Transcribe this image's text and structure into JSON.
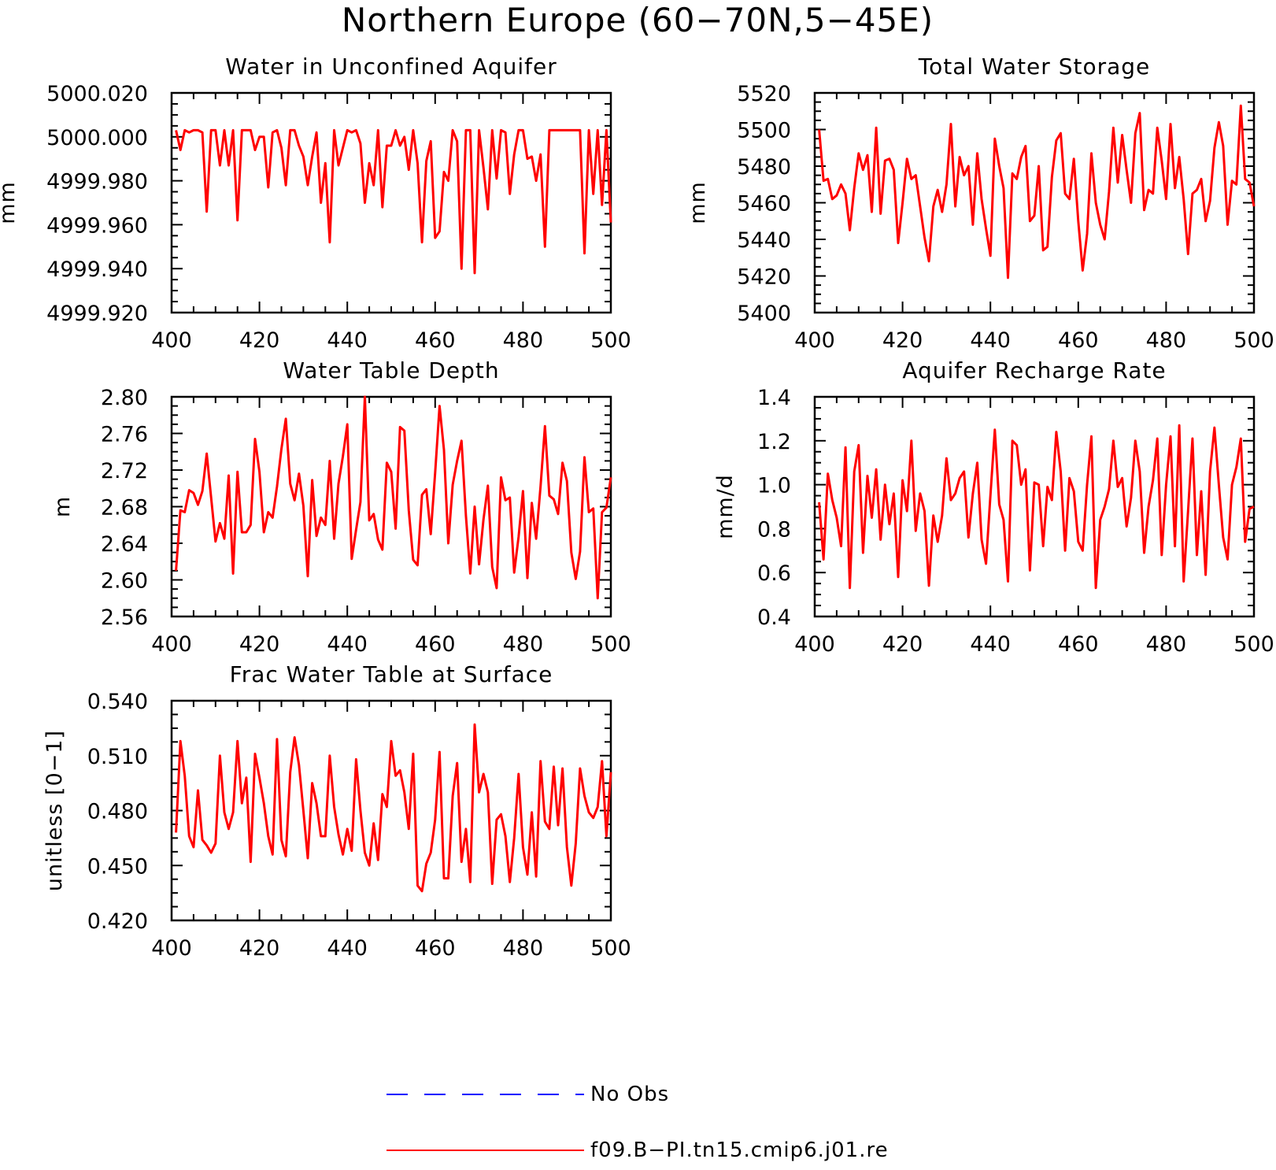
{
  "figure_title": "Northern Europe (60−70N,5−45E)",
  "colors": {
    "model": "#ff0000",
    "obs": "#0000ff",
    "axes": "#000000"
  },
  "legend": {
    "entries": [
      {
        "label": "No Obs",
        "color": "#0000ff",
        "style": "dashed"
      },
      {
        "label": "f09.B−PI.tn15.cmip6.j01.re",
        "color": "#ff0000",
        "style": "solid"
      }
    ]
  },
  "chart_data": [
    {
      "type": "line",
      "title": "Water in Unconfined Aquifer",
      "ylabel": "mm",
      "xlim": [
        400,
        500
      ],
      "xticks": [
        400,
        420,
        440,
        460,
        480,
        500
      ],
      "ylim": [
        4999.92,
        5000.02
      ],
      "yticks": [
        "4999.920",
        "4999.940",
        "4999.960",
        "4999.980",
        "5000.000",
        "5000.020"
      ],
      "x_start": 401,
      "series": [
        {
          "values": [
            5000.003,
            4999.994,
            5000.003,
            5000.002,
            5000.003,
            5000.003,
            5000.002,
            4999.966,
            5000.003,
            5000.003,
            4999.987,
            5000.003,
            4999.987,
            5000.003,
            4999.962,
            5000.003,
            5000.003,
            5000.003,
            4999.994,
            5000.0,
            5000.0,
            4999.977,
            5000.002,
            5000.003,
            4999.995,
            4999.978,
            5000.003,
            5000.003,
            4999.996,
            4999.991,
            4999.978,
            4999.991,
            5000.002,
            4999.97,
            4999.988,
            4999.952,
            5000.003,
            4999.987,
            4999.995,
            5000.003,
            5000.002,
            5000.003,
            4999.997,
            4999.97,
            4999.988,
            4999.978,
            5000.003,
            4999.968,
            4999.996,
            4999.996,
            5000.003,
            4999.996,
            5000.0,
            4999.985,
            5000.003,
            4999.988,
            4999.952,
            4999.989,
            4999.998,
            4999.954,
            4999.957,
            4999.984,
            4999.98,
            5000.003,
            4999.998,
            4999.94,
            5000.003,
            5000.003,
            4999.938,
            5000.003,
            4999.986,
            4999.967,
            5000.003,
            4999.981,
            5000.003,
            5000.002,
            4999.974,
            4999.992,
            5000.003,
            5000.003,
            4999.99,
            4999.991,
            4999.98,
            4999.992,
            4999.95,
            5000.003,
            5000.003,
            5000.003,
            5000.003,
            5000.003,
            5000.003,
            5000.003,
            5000.003,
            4999.947,
            5000.003,
            4999.974,
            5000.003,
            4999.969,
            5000.003,
            4999.961
          ]
        }
      ]
    },
    {
      "type": "line",
      "title": "Total Water Storage",
      "ylabel": "mm",
      "xlim": [
        400,
        500
      ],
      "xticks": [
        400,
        420,
        440,
        460,
        480,
        500
      ],
      "ylim": [
        5400,
        5520
      ],
      "yticks": [
        "5400",
        "5420",
        "5440",
        "5460",
        "5480",
        "5500",
        "5520"
      ],
      "x_start": 401,
      "series": [
        {
          "values": [
            5500,
            5472,
            5473,
            5462,
            5464,
            5470,
            5465,
            5445,
            5468,
            5487,
            5478,
            5486,
            5455,
            5501,
            5454,
            5483,
            5484,
            5478,
            5438,
            5460,
            5484,
            5473,
            5475,
            5458,
            5441,
            5428,
            5458,
            5467,
            5455,
            5470,
            5503,
            5458,
            5485,
            5475,
            5480,
            5448,
            5487,
            5462,
            5446,
            5431,
            5495,
            5480,
            5468,
            5419,
            5476,
            5473,
            5485,
            5491,
            5450,
            5453,
            5480,
            5434,
            5436,
            5474,
            5494,
            5498,
            5465,
            5462,
            5484,
            5450,
            5423,
            5443,
            5487,
            5460,
            5448,
            5440,
            5466,
            5501,
            5471,
            5497,
            5478,
            5460,
            5498,
            5509,
            5456,
            5467,
            5465,
            5501,
            5483,
            5462,
            5503,
            5468,
            5485,
            5462,
            5432,
            5465,
            5467,
            5473,
            5450,
            5461,
            5490,
            5504,
            5491,
            5448,
            5472,
            5470,
            5513,
            5473,
            5471,
            5458
          ]
        }
      ]
    },
    {
      "type": "line",
      "title": "Water Table Depth",
      "ylabel": "m",
      "xlim": [
        400,
        500
      ],
      "xticks": [
        400,
        420,
        440,
        460,
        480,
        500
      ],
      "ylim": [
        2.56,
        2.8
      ],
      "yticks": [
        "2.56",
        "2.60",
        "2.64",
        "2.68",
        "2.72",
        "2.76",
        "2.80"
      ],
      "x_start": 401,
      "series": [
        {
          "values": [
            2.61,
            2.676,
            2.674,
            2.698,
            2.695,
            2.682,
            2.697,
            2.738,
            2.69,
            2.642,
            2.662,
            2.645,
            2.714,
            2.607,
            2.718,
            2.652,
            2.652,
            2.66,
            2.754,
            2.718,
            2.652,
            2.674,
            2.668,
            2.702,
            2.743,
            2.776,
            2.705,
            2.687,
            2.716,
            2.681,
            2.604,
            2.709,
            2.648,
            2.668,
            2.66,
            2.73,
            2.645,
            2.705,
            2.735,
            2.77,
            2.623,
            2.655,
            2.685,
            2.8,
            2.665,
            2.672,
            2.644,
            2.633,
            2.728,
            2.718,
            2.656,
            2.767,
            2.763,
            2.676,
            2.622,
            2.616,
            2.693,
            2.699,
            2.65,
            2.717,
            2.79,
            2.742,
            2.64,
            2.704,
            2.73,
            2.752,
            2.67,
            2.607,
            2.68,
            2.617,
            2.666,
            2.703,
            2.614,
            2.591,
            2.712,
            2.687,
            2.69,
            2.608,
            2.647,
            2.697,
            2.602,
            2.684,
            2.645,
            2.702,
            2.768,
            2.692,
            2.688,
            2.672,
            2.728,
            2.708,
            2.63,
            2.601,
            2.631,
            2.734,
            2.674,
            2.678,
            2.58,
            2.674,
            2.679,
            2.712
          ]
        }
      ]
    },
    {
      "type": "line",
      "title": "Aquifer Recharge Rate",
      "ylabel": "mm/d",
      "xlim": [
        400,
        500
      ],
      "xticks": [
        400,
        420,
        440,
        460,
        480,
        500
      ],
      "ylim": [
        0.4,
        1.4
      ],
      "yticks": [
        "0.4",
        "0.6",
        "0.8",
        "1.0",
        "1.2",
        "1.4"
      ],
      "x_start": 401,
      "series": [
        {
          "values": [
            0.92,
            0.66,
            1.05,
            0.93,
            0.85,
            0.72,
            1.17,
            0.53,
            1.06,
            1.18,
            0.69,
            1.04,
            0.85,
            1.07,
            0.75,
            1.0,
            0.82,
            0.96,
            0.58,
            1.02,
            0.88,
            1.2,
            0.79,
            0.96,
            0.88,
            0.54,
            0.86,
            0.74,
            0.86,
            1.12,
            0.93,
            0.96,
            1.03,
            1.06,
            0.76,
            0.96,
            1.1,
            0.75,
            0.64,
            0.95,
            1.25,
            0.91,
            0.84,
            0.56,
            1.2,
            1.18,
            1.0,
            1.07,
            0.61,
            1.01,
            1.0,
            0.72,
            0.99,
            0.93,
            1.24,
            1.06,
            0.7,
            1.03,
            0.97,
            0.74,
            0.7,
            1.0,
            1.22,
            0.53,
            0.84,
            0.9,
            0.98,
            1.2,
            0.99,
            1.03,
            0.81,
            0.94,
            1.2,
            1.06,
            0.69,
            0.9,
            1.02,
            1.21,
            0.68,
            1.0,
            1.22,
            0.72,
            1.27,
            0.56,
            0.88,
            1.21,
            0.68,
            0.97,
            0.59,
            1.06,
            1.26,
            1.0,
            0.76,
            0.66,
            1.0,
            1.08,
            1.21,
            0.74,
            0.89,
            0.9
          ]
        }
      ]
    },
    {
      "type": "line",
      "title": "Frac Water Table at Surface",
      "ylabel": "unitless [0−1]",
      "xlim": [
        400,
        500
      ],
      "xticks": [
        400,
        420,
        440,
        460,
        480,
        500
      ],
      "ylim": [
        0.42,
        0.54
      ],
      "yticks": [
        "0.420",
        "0.450",
        "0.480",
        "0.510",
        "0.540"
      ],
      "x_start": 401,
      "series": [
        {
          "values": [
            0.468,
            0.518,
            0.499,
            0.466,
            0.46,
            0.491,
            0.464,
            0.461,
            0.457,
            0.462,
            0.51,
            0.479,
            0.47,
            0.479,
            0.518,
            0.484,
            0.498,
            0.452,
            0.511,
            0.498,
            0.484,
            0.466,
            0.456,
            0.519,
            0.464,
            0.455,
            0.501,
            0.52,
            0.505,
            0.48,
            0.454,
            0.495,
            0.484,
            0.466,
            0.466,
            0.51,
            0.482,
            0.467,
            0.456,
            0.47,
            0.458,
            0.508,
            0.48,
            0.457,
            0.45,
            0.473,
            0.453,
            0.489,
            0.482,
            0.518,
            0.499,
            0.502,
            0.49,
            0.47,
            0.511,
            0.439,
            0.436,
            0.451,
            0.457,
            0.475,
            0.512,
            0.443,
            0.443,
            0.488,
            0.506,
            0.452,
            0.47,
            0.441,
            0.527,
            0.49,
            0.5,
            0.49,
            0.44,
            0.475,
            0.478,
            0.466,
            0.441,
            0.465,
            0.5,
            0.46,
            0.445,
            0.479,
            0.444,
            0.507,
            0.474,
            0.47,
            0.504,
            0.472,
            0.503,
            0.46,
            0.439,
            0.462,
            0.503,
            0.488,
            0.479,
            0.476,
            0.482,
            0.507,
            0.466,
            0.501
          ]
        }
      ]
    }
  ]
}
